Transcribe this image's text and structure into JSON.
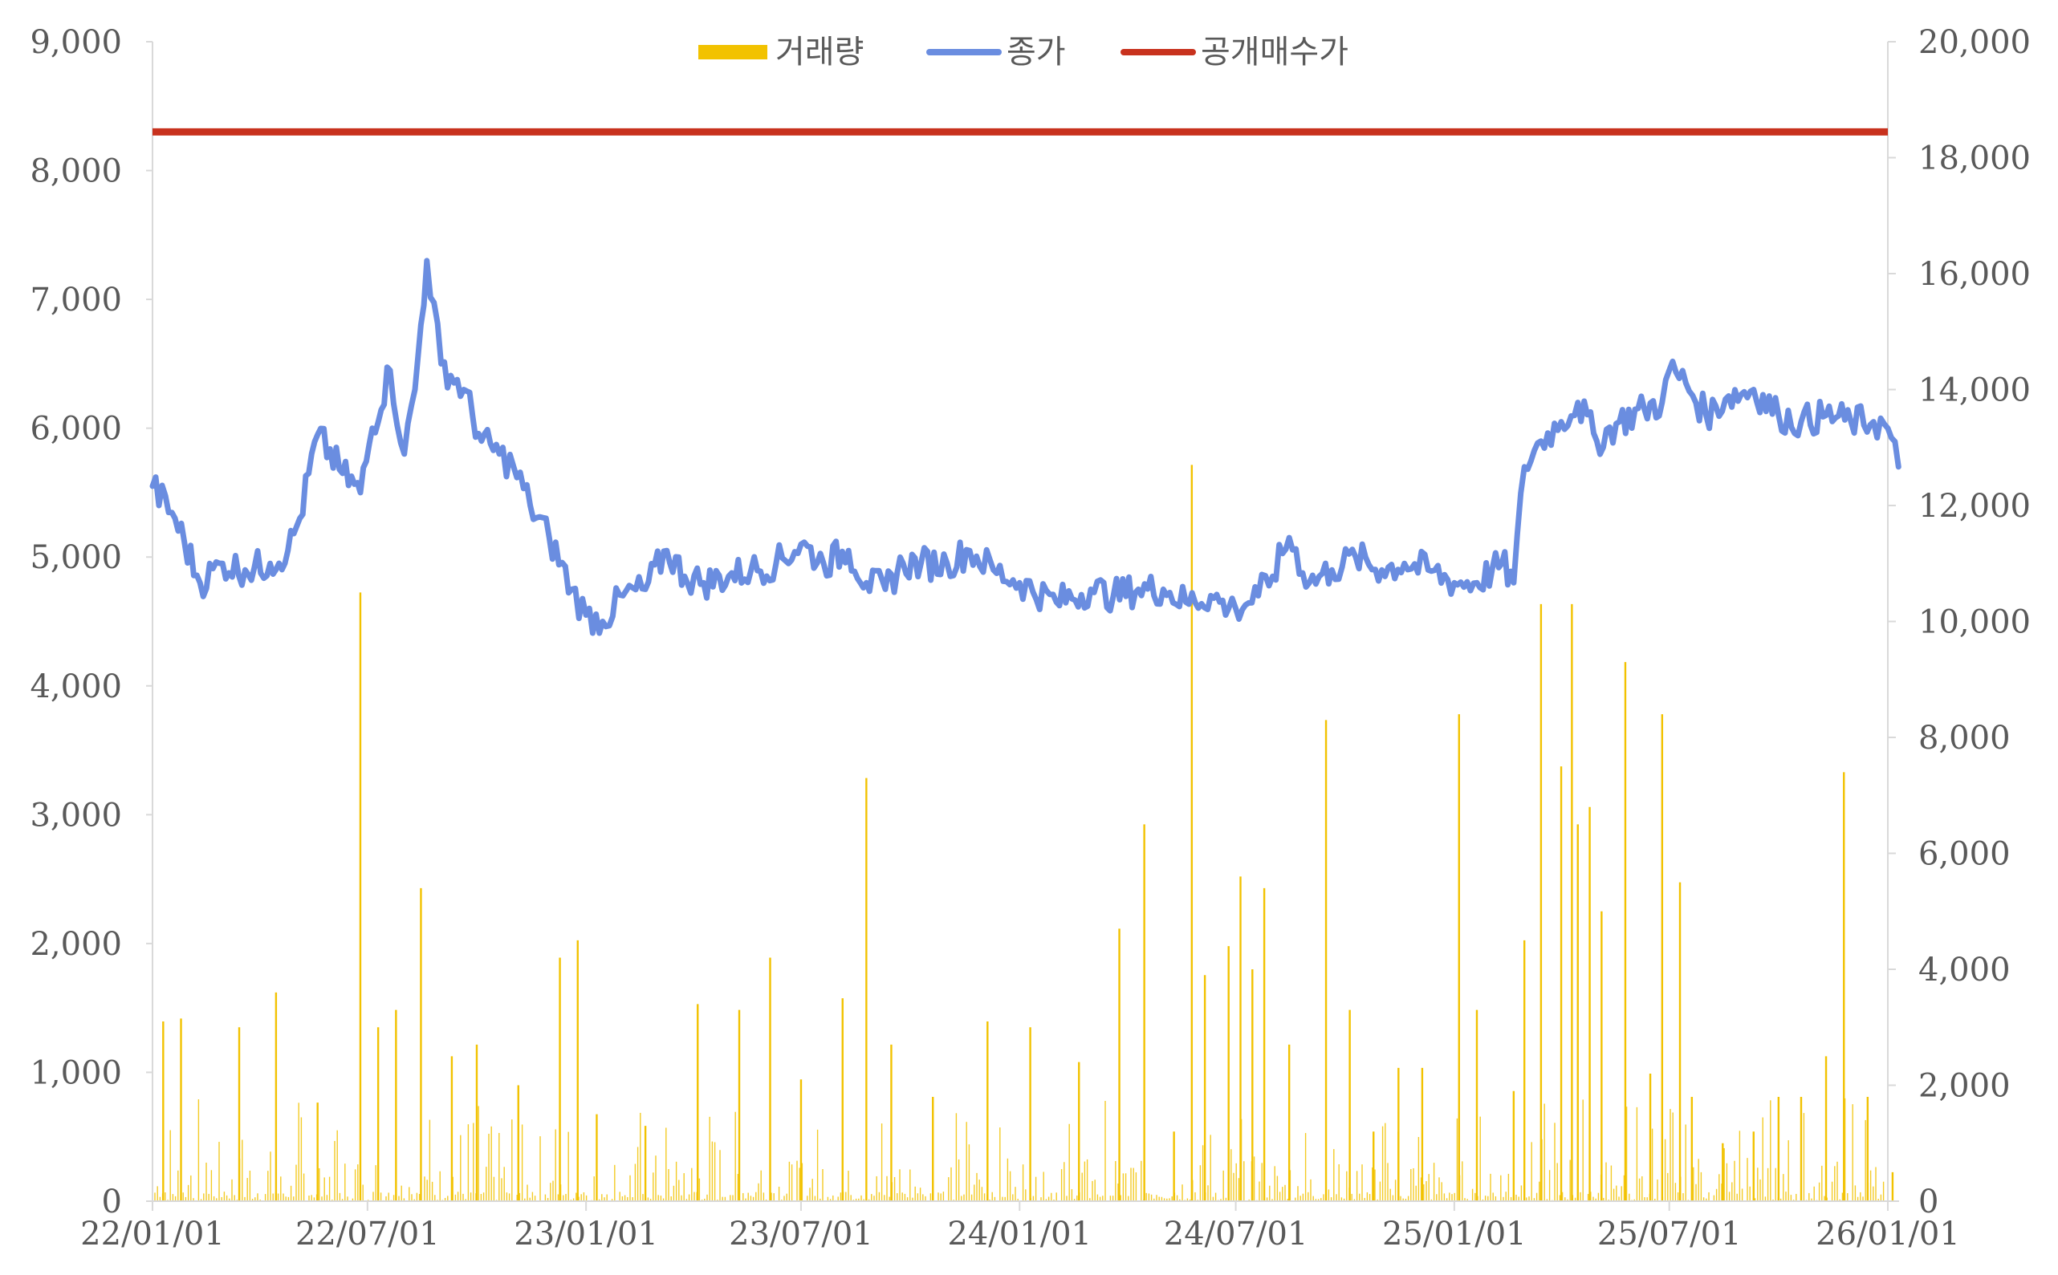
{
  "chart_data": {
    "type": "line",
    "legend": [
      {
        "label": "거래량",
        "color": "#F2C200",
        "kind": "bar"
      },
      {
        "label": "종가",
        "color": "#6A8DE0",
        "kind": "line"
      },
      {
        "label": "공개매수가",
        "color": "#C8321E",
        "kind": "line"
      }
    ],
    "legend_position": "top-center",
    "x_ticks": [
      "22/01/01",
      "22/07/01",
      "23/01/01",
      "23/07/01",
      "24/01/01",
      "24/07/01",
      "25/01/01",
      "25/07/01",
      "26/01/01"
    ],
    "y_left": {
      "min": 0,
      "max": 9000,
      "ticks": [
        "0",
        "1,000",
        "2,000",
        "3,000",
        "4,000",
        "5,000",
        "6,000",
        "7,000",
        "8,000",
        "9,000"
      ]
    },
    "y_right": {
      "min": 0,
      "max": 20000,
      "ticks": [
        "0",
        "2,000",
        "4,000",
        "6,000",
        "8,000",
        "10,000",
        "12,000",
        "14,000",
        "16,000",
        "18,000",
        "20,000"
      ]
    },
    "grid": false,
    "series": [
      {
        "name": "종가",
        "axis": "left",
        "x": [
          "22/01/01",
          "22/01/20",
          "22/02/10",
          "22/03/01",
          "22/03/20",
          "22/04/10",
          "22/04/25",
          "22/05/05",
          "22/05/20",
          "22/06/10",
          "22/06/25",
          "22/07/05",
          "22/07/20",
          "22/08/01",
          "22/08/10",
          "22/08/20",
          "22/09/01",
          "22/09/20",
          "22/10/05",
          "22/10/20",
          "22/11/01",
          "22/11/15",
          "22/12/01",
          "22/12/20",
          "23/01/01",
          "23/01/15",
          "23/02/01",
          "23/02/20",
          "23/03/10",
          "23/03/25",
          "23/04/10",
          "23/05/01",
          "23/05/20",
          "23/06/10",
          "23/07/01",
          "23/07/20",
          "23/08/10",
          "23/08/25",
          "23/09/10",
          "23/09/25",
          "23/10/10",
          "23/11/01",
          "23/11/20",
          "23/12/10",
          "24/01/01",
          "24/02/01",
          "24/03/01",
          "24/03/20",
          "24/04/10",
          "24/05/01",
          "24/05/20",
          "24/06/10",
          "24/06/25",
          "24/07/01",
          "24/07/20",
          "24/08/01",
          "24/08/15",
          "24/09/01",
          "24/09/20",
          "24/10/10",
          "24/11/01",
          "24/11/20",
          "24/12/10",
          "25/01/01",
          "25/01/20",
          "25/02/10",
          "25/02/20",
          "25/03/01",
          "25/03/15",
          "25/04/01",
          "25/04/15",
          "25/05/01",
          "25/05/20",
          "25/06/10",
          "25/06/25",
          "25/07/01",
          "25/07/15",
          "25/08/01",
          "25/08/20",
          "25/09/10",
          "25/10/01",
          "25/10/20",
          "25/11/10",
          "25/12/01",
          "25/12/20",
          "26/01/01",
          "26/01/10"
        ],
        "values": [
          5550,
          5300,
          4800,
          4950,
          4900,
          4950,
          5050,
          5300,
          5950,
          5650,
          5500,
          6000,
          6450,
          5800,
          6300,
          7300,
          6500,
          6300,
          5900,
          5800,
          5700,
          5400,
          5150,
          4750,
          4550,
          4500,
          4700,
          4750,
          5050,
          4850,
          4800,
          4850,
          4900,
          4950,
          5100,
          4950,
          5050,
          4800,
          4750,
          4950,
          4950,
          4950,
          5050,
          4900,
          4800,
          4650,
          4750,
          4700,
          4750,
          4750,
          4650,
          4700,
          4600,
          4600,
          4700,
          4850,
          5150,
          4800,
          4900,
          5000,
          4900,
          4950,
          4900,
          4800,
          4800,
          4950,
          4800,
          5700,
          5900,
          6050,
          6200,
          5900,
          6050,
          6150,
          6200,
          6450,
          6350,
          6100,
          6250,
          6300,
          6100,
          6050,
          6100,
          6050,
          6050,
          6000,
          5700
        ]
      },
      {
        "name": "공개매수가",
        "axis": "left",
        "x": [
          "22/01/01",
          "26/01/10"
        ],
        "values": [
          8300,
          8300
        ]
      },
      {
        "name": "거래량",
        "axis": "right",
        "x": [
          "22/01/10",
          "22/01/25",
          "22/03/15",
          "22/04/15",
          "22/05/20",
          "22/06/25",
          "22/07/10",
          "22/07/25",
          "22/08/15",
          "22/09/10",
          "22/10/01",
          "22/11/05",
          "22/12/10",
          "22/12/25",
          "23/01/10",
          "23/02/20",
          "23/04/05",
          "23/05/10",
          "23/06/05",
          "23/07/01",
          "23/08/05",
          "23/08/25",
          "23/09/15",
          "23/10/20",
          "23/12/05",
          "24/01/10",
          "24/02/20",
          "24/03/25",
          "24/04/15",
          "24/05/10",
          "24/05/25",
          "24/06/05",
          "24/06/25",
          "24/07/05",
          "24/07/15",
          "24/07/25",
          "24/08/15",
          "24/09/15",
          "24/10/05",
          "24/10/25",
          "24/11/15",
          "24/12/05",
          "25/01/05",
          "25/01/20",
          "25/02/20",
          "25/03/01",
          "25/03/15",
          "25/04/01",
          "25/04/10",
          "25/04/15",
          "25/04/25",
          "25/05/05",
          "25/05/25",
          "25/06/15",
          "25/06/25",
          "25/07/10",
          "25/07/20",
          "25/08/15",
          "25/09/10",
          "25/10/01",
          "25/10/20",
          "25/11/10",
          "25/11/25",
          "25/12/15",
          "26/01/05"
        ],
        "values": [
          3100,
          3150,
          3000,
          3600,
          1700,
          10500,
          3000,
          3300,
          5400,
          2500,
          2700,
          2000,
          4200,
          4500,
          1500,
          1300,
          3400,
          3300,
          4200,
          2100,
          3500,
          7300,
          2700,
          1800,
          3100,
          3000,
          2400,
          4700,
          6500,
          1200,
          12700,
          3900,
          4400,
          5600,
          4000,
          5400,
          2700,
          8300,
          3300,
          1200,
          2300,
          2300,
          8400,
          3300,
          1900,
          4500,
          10300,
          7500,
          10300,
          6500,
          6800,
          5000,
          9300,
          2200,
          8400,
          5500,
          1800,
          1000,
          1200,
          1800,
          1800,
          2500,
          7400,
          1800,
          500
        ]
      }
    ]
  }
}
